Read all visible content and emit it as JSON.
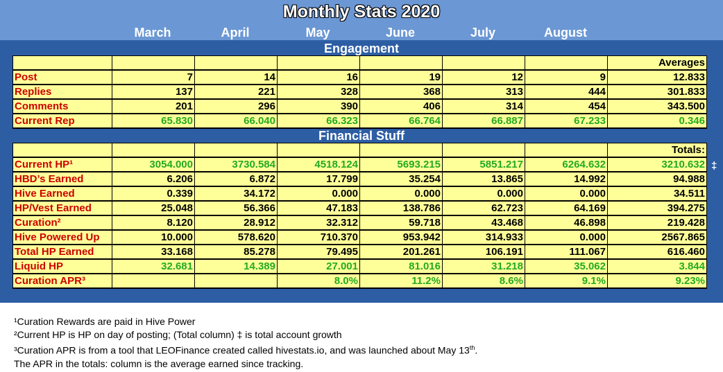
{
  "title": "Monthly Stats 2020",
  "months": [
    "March",
    "April",
    "May",
    "June",
    "July",
    "August"
  ],
  "engagement": {
    "title": "Engagement",
    "header": [
      "",
      "",
      "",
      "",
      "",
      "",
      "",
      "Averages"
    ],
    "rows": [
      {
        "label": "Post",
        "values": [
          "7",
          "14",
          "16",
          "19",
          "12",
          "9",
          "12.833"
        ],
        "green": false
      },
      {
        "label": "Replies",
        "values": [
          "137",
          "221",
          "328",
          "368",
          "313",
          "444",
          "301.833"
        ],
        "green": false
      },
      {
        "label": "Comments",
        "values": [
          "201",
          "296",
          "390",
          "406",
          "314",
          "454",
          "343.500"
        ],
        "green": false
      },
      {
        "label": "Current Rep",
        "values": [
          "65.830",
          "66.040",
          "66.323",
          "66.764",
          "66.887",
          "67.233",
          "0.346"
        ],
        "green": true
      }
    ]
  },
  "financial": {
    "title": "Financial Stuff",
    "header": [
      "",
      "",
      "",
      "",
      "",
      "",
      "",
      "Totals:"
    ],
    "rows": [
      {
        "label": "Current HP¹",
        "values": [
          "3054.000",
          "3730.584",
          "4518.124",
          "5693.215",
          "5851.217",
          "6264.632",
          "3210.632"
        ],
        "green": true
      },
      {
        "label": "HBD’s Earned",
        "values": [
          "6.206",
          "6.872",
          "17.799",
          "35.254",
          "13.865",
          "14.992",
          "94.988"
        ],
        "green": false
      },
      {
        "label": "Hive Earned",
        "values": [
          "0.339",
          "34.172",
          "0.000",
          "0.000",
          "0.000",
          "0.000",
          "34.511"
        ],
        "green": false
      },
      {
        "label": "HP/Vest Earned",
        "values": [
          "25.048",
          "56.366",
          "47.183",
          "138.786",
          "62.723",
          "64.169",
          "394.275"
        ],
        "green": false
      },
      {
        "label": "Curation²",
        "values": [
          "8.120",
          "28.912",
          "32.312",
          "59.718",
          "43.468",
          "46.898",
          "219.428"
        ],
        "green": false
      },
      {
        "label": "Hive Powered Up",
        "values": [
          "10.000",
          "578.620",
          "710.370",
          "953.942",
          "314.933",
          "0.000",
          "2567.865"
        ],
        "green": false
      },
      {
        "label": "Total HP Earned",
        "values": [
          "33.168",
          "85.278",
          "79.495",
          "201.261",
          "106.191",
          "111.067",
          "616.460"
        ],
        "green": false
      },
      {
        "label": "Liquid HP",
        "values": [
          "32.681",
          "14.389",
          "27.001",
          "81.016",
          "31.218",
          "35.062",
          "3.844"
        ],
        "green": true
      },
      {
        "label": "Curation APR³",
        "values": [
          "",
          "",
          "8.0%",
          "11.2%",
          "8.6%",
          "9.1%",
          "9.23%"
        ],
        "green": true
      }
    ],
    "dagger": "‡"
  },
  "notes": [
    "¹Curation Rewards are paid in Hive Power",
    "²Current HP is HP on day of posting; (Total column) ‡ is total account growth",
    "³Curation APR is from a tool that LEOFinance created called hivestats.io, and was launched about May 13th.",
    "The APR in the totals: column is the average earned since tracking."
  ],
  "colors": {
    "panel": "#2d5ea4",
    "header_band": "#6b97d4",
    "cell_bg": "#ffff99",
    "label_red": "#cc0000",
    "value_green": "#22aa22"
  }
}
